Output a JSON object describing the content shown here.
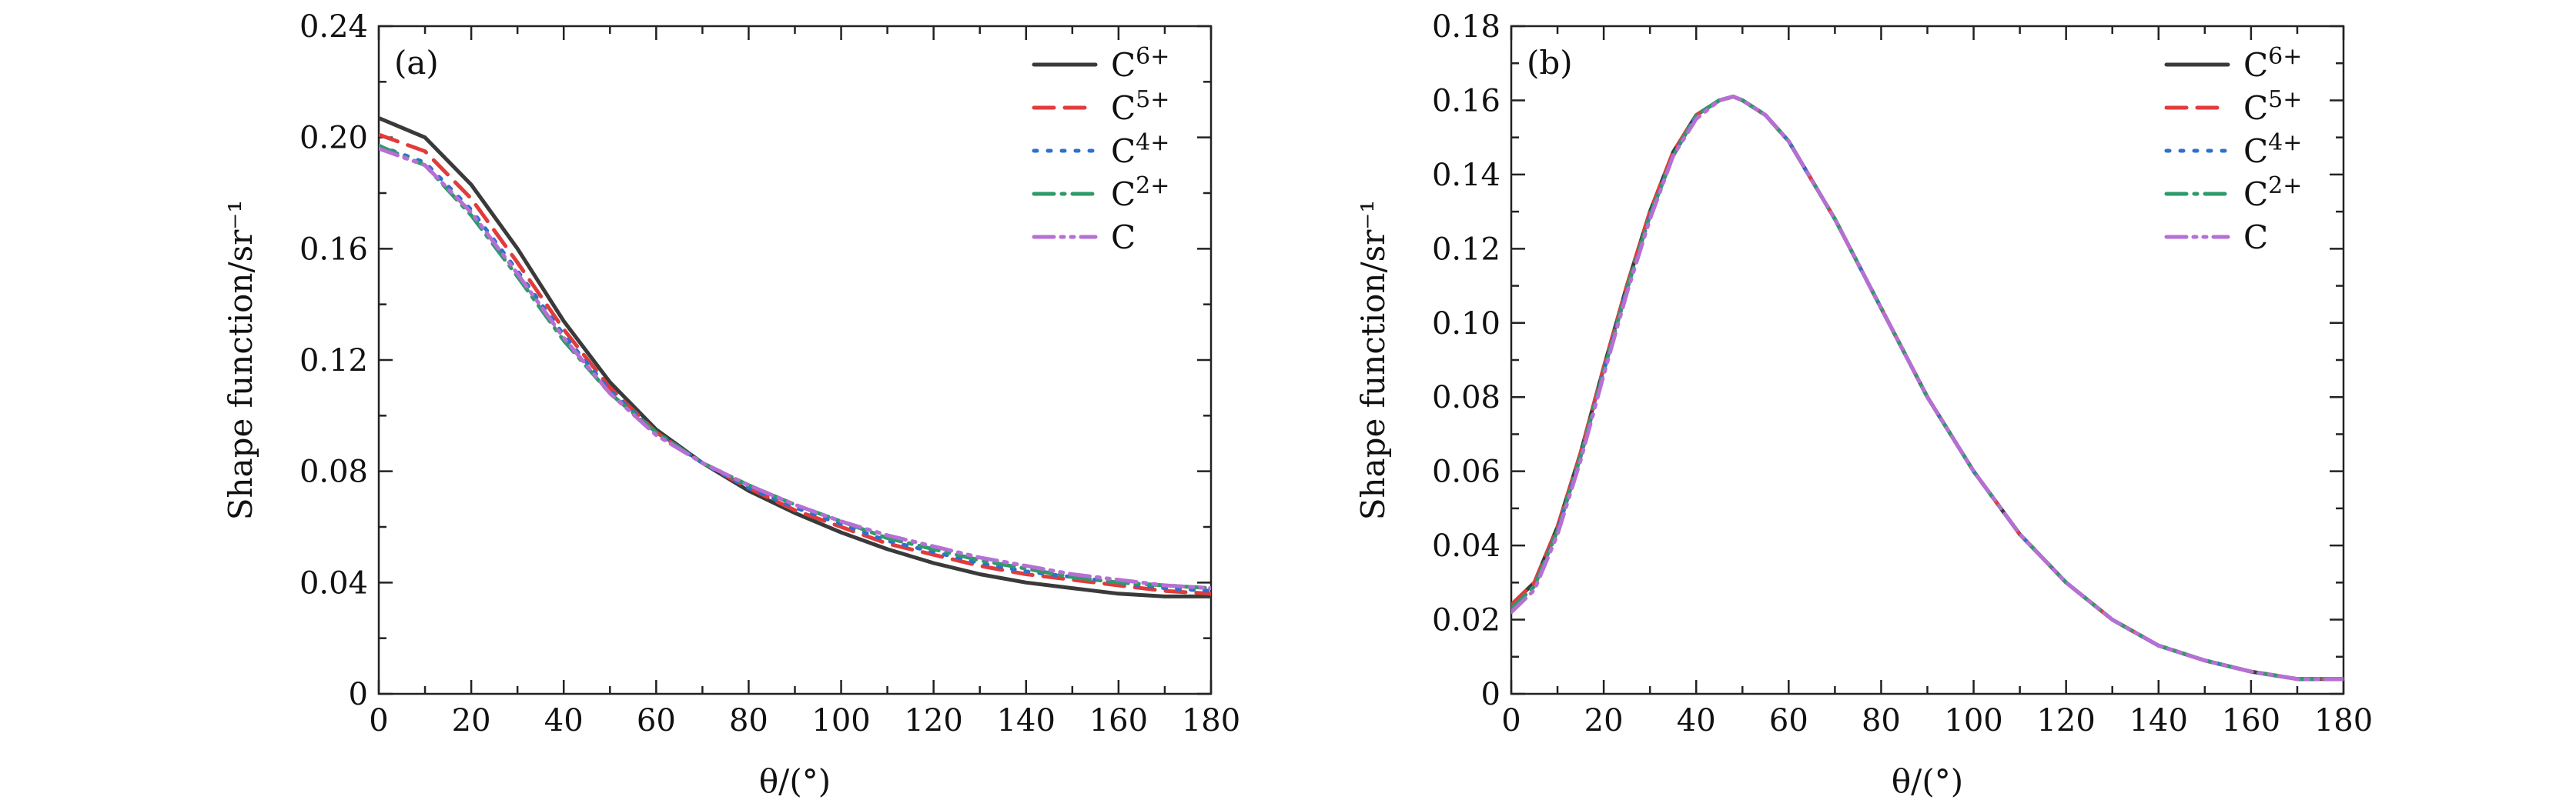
{
  "chart_data": [
    {
      "type": "line",
      "panel_label": "(a)",
      "xlabel": "θ/(°)",
      "ylabel": "Shape function/sr⁻¹",
      "xlim": [
        0,
        180
      ],
      "ylim": [
        0,
        0.24
      ],
      "xticks": [
        "0",
        "20",
        "40",
        "60",
        "80",
        "100",
        "120",
        "140",
        "160",
        "180"
      ],
      "yticks": [
        "0",
        "0.04",
        "0.08",
        "0.12",
        "0.16",
        "0.20",
        "0.24"
      ],
      "legend_position": "top-right",
      "x": [
        0,
        10,
        20,
        30,
        40,
        50,
        60,
        70,
        80,
        90,
        100,
        110,
        120,
        130,
        140,
        150,
        160,
        170,
        180
      ],
      "series": [
        {
          "name": "C6+",
          "base": "C",
          "sup": "6+",
          "color": "#3a3a3a",
          "dash": "solid",
          "values": [
            0.207,
            0.2,
            0.183,
            0.16,
            0.134,
            0.112,
            0.095,
            0.083,
            0.073,
            0.065,
            0.058,
            0.052,
            0.047,
            0.043,
            0.04,
            0.038,
            0.036,
            0.035,
            0.035
          ]
        },
        {
          "name": "C5+",
          "base": "C",
          "sup": "5+",
          "color": "#e23b3b",
          "dash": "dashed",
          "values": [
            0.201,
            0.195,
            0.178,
            0.155,
            0.131,
            0.11,
            0.094,
            0.083,
            0.074,
            0.066,
            0.06,
            0.054,
            0.05,
            0.046,
            0.043,
            0.041,
            0.039,
            0.037,
            0.036
          ]
        },
        {
          "name": "C4+",
          "base": "C",
          "sup": "4+",
          "color": "#2e6fd0",
          "dash": "dotted",
          "values": [
            0.197,
            0.191,
            0.174,
            0.152,
            0.129,
            0.109,
            0.094,
            0.083,
            0.074,
            0.067,
            0.061,
            0.055,
            0.051,
            0.047,
            0.044,
            0.042,
            0.04,
            0.038,
            0.037
          ]
        },
        {
          "name": "C2+",
          "base": "C",
          "sup": "2+",
          "color": "#2e9a6a",
          "dash": "dashdot",
          "values": [
            0.197,
            0.19,
            0.172,
            0.15,
            0.127,
            0.108,
            0.094,
            0.083,
            0.075,
            0.068,
            0.062,
            0.056,
            0.052,
            0.048,
            0.045,
            0.042,
            0.04,
            0.039,
            0.038
          ]
        },
        {
          "name": "C",
          "base": "C",
          "sup": "",
          "color": "#b66fd4",
          "dash": "dashdotdot",
          "values": [
            0.196,
            0.19,
            0.173,
            0.151,
            0.128,
            0.108,
            0.093,
            0.083,
            0.075,
            0.068,
            0.062,
            0.057,
            0.053,
            0.049,
            0.046,
            0.043,
            0.041,
            0.039,
            0.038
          ]
        }
      ]
    },
    {
      "type": "line",
      "panel_label": "(b)",
      "xlabel": "θ/(°)",
      "ylabel": "Shape function/sr⁻¹",
      "xlim": [
        0,
        180
      ],
      "ylim": [
        0,
        0.18
      ],
      "xticks": [
        "0",
        "20",
        "40",
        "60",
        "80",
        "100",
        "120",
        "140",
        "160",
        "180"
      ],
      "yticks": [
        "0",
        "0.02",
        "0.04",
        "0.06",
        "0.08",
        "0.10",
        "0.12",
        "0.14",
        "0.16",
        "0.18"
      ],
      "legend_position": "top-right",
      "x": [
        0,
        5,
        10,
        15,
        20,
        25,
        30,
        35,
        40,
        45,
        48,
        50,
        55,
        60,
        70,
        80,
        90,
        100,
        110,
        120,
        130,
        140,
        150,
        160,
        170,
        180
      ],
      "series": [
        {
          "name": "C6+",
          "base": "C",
          "sup": "6+",
          "color": "#3a3a3a",
          "dash": "solid",
          "values": [
            0.024,
            0.03,
            0.045,
            0.065,
            0.088,
            0.11,
            0.13,
            0.146,
            0.156,
            0.16,
            0.161,
            0.16,
            0.156,
            0.149,
            0.128,
            0.104,
            0.08,
            0.06,
            0.043,
            0.03,
            0.02,
            0.013,
            0.009,
            0.006,
            0.004,
            0.004
          ]
        },
        {
          "name": "C5+",
          "base": "C",
          "sup": "5+",
          "color": "#e23b3b",
          "dash": "dashed",
          "values": [
            0.024,
            0.03,
            0.045,
            0.065,
            0.088,
            0.11,
            0.13,
            0.146,
            0.156,
            0.16,
            0.161,
            0.16,
            0.156,
            0.149,
            0.128,
            0.104,
            0.08,
            0.06,
            0.043,
            0.03,
            0.02,
            0.013,
            0.009,
            0.006,
            0.004,
            0.004
          ]
        },
        {
          "name": "C4+",
          "base": "C",
          "sup": "4+",
          "color": "#2e6fd0",
          "dash": "dotted",
          "values": [
            0.023,
            0.029,
            0.044,
            0.064,
            0.087,
            0.109,
            0.129,
            0.145,
            0.156,
            0.16,
            0.161,
            0.16,
            0.156,
            0.149,
            0.128,
            0.104,
            0.08,
            0.06,
            0.043,
            0.03,
            0.02,
            0.013,
            0.009,
            0.006,
            0.004,
            0.004
          ]
        },
        {
          "name": "C2+",
          "base": "C",
          "sup": "2+",
          "color": "#2e9a6a",
          "dash": "dashdot",
          "values": [
            0.023,
            0.029,
            0.044,
            0.064,
            0.087,
            0.109,
            0.129,
            0.145,
            0.156,
            0.16,
            0.161,
            0.16,
            0.156,
            0.149,
            0.128,
            0.104,
            0.08,
            0.06,
            0.043,
            0.03,
            0.02,
            0.013,
            0.009,
            0.006,
            0.004,
            0.004
          ]
        },
        {
          "name": "C",
          "base": "C",
          "sup": "",
          "color": "#b66fd4",
          "dash": "dashdotdot",
          "values": [
            0.022,
            0.028,
            0.043,
            0.063,
            0.086,
            0.108,
            0.128,
            0.145,
            0.155,
            0.16,
            0.161,
            0.16,
            0.156,
            0.149,
            0.128,
            0.104,
            0.08,
            0.06,
            0.043,
            0.03,
            0.02,
            0.013,
            0.009,
            0.006,
            0.004,
            0.004
          ]
        }
      ]
    }
  ]
}
